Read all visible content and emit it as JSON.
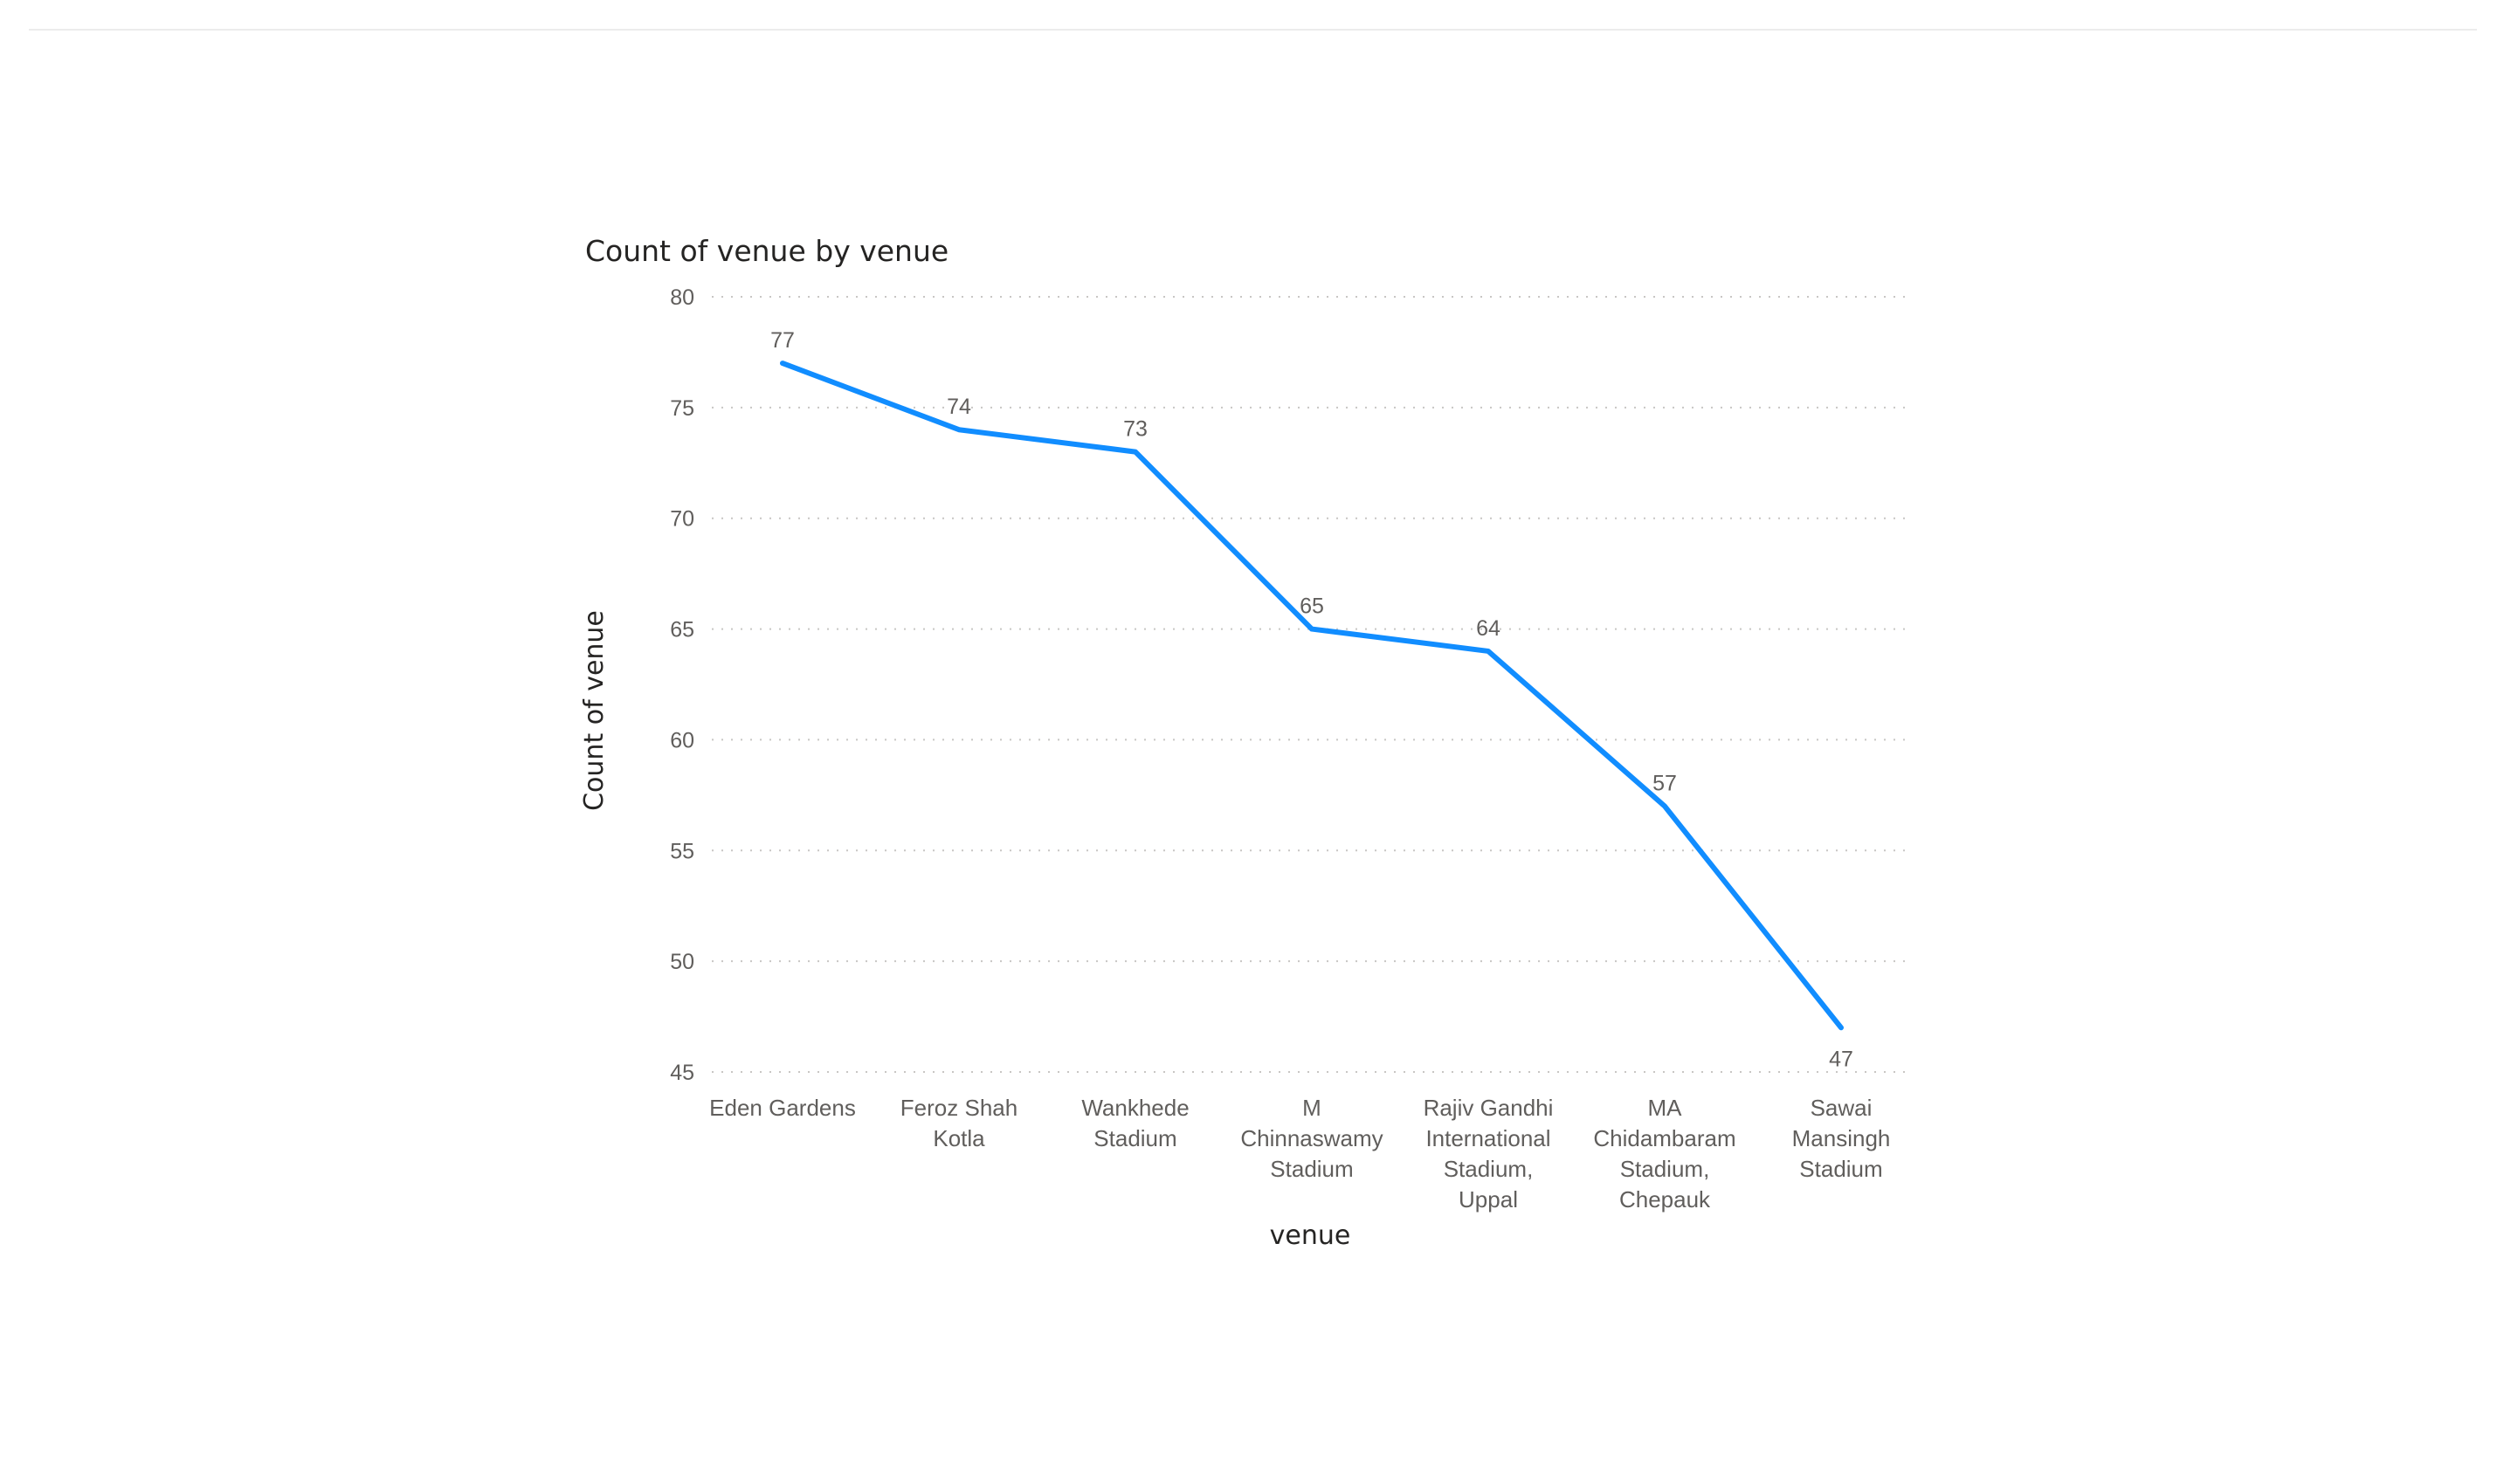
{
  "chart_data": {
    "type": "line",
    "title": "Count of venue by venue",
    "xlabel": "venue",
    "ylabel": "Count of venue",
    "categories": [
      [
        "Eden Gardens"
      ],
      [
        "Feroz Shah",
        "Kotla"
      ],
      [
        "Wankhede",
        "Stadium"
      ],
      [
        "M",
        "Chinnaswamy",
        "Stadium"
      ],
      [
        "Rajiv Gandhi",
        "International",
        "Stadium,",
        "Uppal"
      ],
      [
        "MA",
        "Chidambaram",
        "Stadium,",
        "Chepauk"
      ],
      [
        "Sawai",
        "Mansingh",
        "Stadium"
      ]
    ],
    "values": [
      77,
      74,
      73,
      65,
      64,
      57,
      47
    ],
    "ylim": [
      45,
      80
    ],
    "yticks": [
      80,
      75,
      70,
      65,
      60,
      55,
      50,
      45
    ],
    "grid": true,
    "line_color": "#118DFF"
  }
}
